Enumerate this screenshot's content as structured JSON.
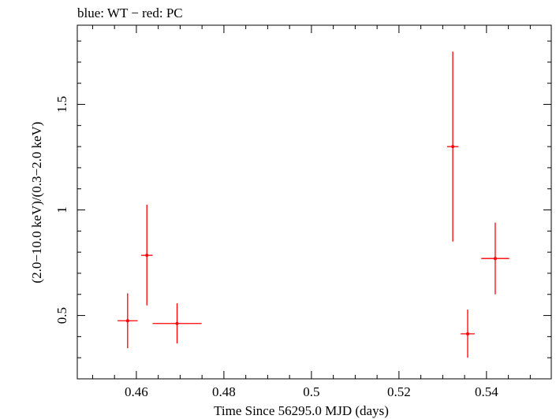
{
  "chart_data": {
    "type": "scatter",
    "title": "blue: WT − red: PC",
    "xlabel": "Time Since 56295.0 MJD (days)",
    "ylabel": "(2.0−10.0 keV)/(0.3−2.0 keV)",
    "xlim": [
      0.4465,
      0.5548
    ],
    "ylim": [
      0.2,
      1.875
    ],
    "x_ticks": [
      {
        "value": 0.46,
        "label": "0.46"
      },
      {
        "value": 0.48,
        "label": "0.48"
      },
      {
        "value": 0.5,
        "label": "0.5"
      },
      {
        "value": 0.52,
        "label": "0.52"
      },
      {
        "value": 0.54,
        "label": "0.54"
      }
    ],
    "y_ticks": [
      {
        "value": 0.5,
        "label": "0.5"
      },
      {
        "value": 1.0,
        "label": "1"
      },
      {
        "value": 1.5,
        "label": "1.5"
      }
    ],
    "x_minor_step": 0.005,
    "y_minor_step": 0.1,
    "series": [
      {
        "name": "PC",
        "color": "#ff0000",
        "points": [
          {
            "x": 0.458,
            "xerr": 0.0023,
            "y": 0.475,
            "ylo": 0.345,
            "yhi": 0.605
          },
          {
            "x": 0.4624,
            "xerr": 0.0013,
            "y": 0.785,
            "ylo": 0.548,
            "yhi": 1.025
          },
          {
            "x": 0.4693,
            "xerr": 0.0056,
            "y": 0.462,
            "ylo": 0.368,
            "yhi": 0.558
          },
          {
            "x": 0.5323,
            "xerr": 0.0013,
            "y": 1.3,
            "ylo": 0.85,
            "yhi": 1.75
          },
          {
            "x": 0.5357,
            "xerr": 0.0016,
            "y": 0.413,
            "ylo": 0.3,
            "yhi": 0.528
          },
          {
            "x": 0.542,
            "xerr": 0.0032,
            "y": 0.77,
            "ylo": 0.6,
            "yhi": 0.94
          }
        ]
      },
      {
        "name": "WT",
        "color": "#0000ff",
        "points": []
      }
    ]
  }
}
